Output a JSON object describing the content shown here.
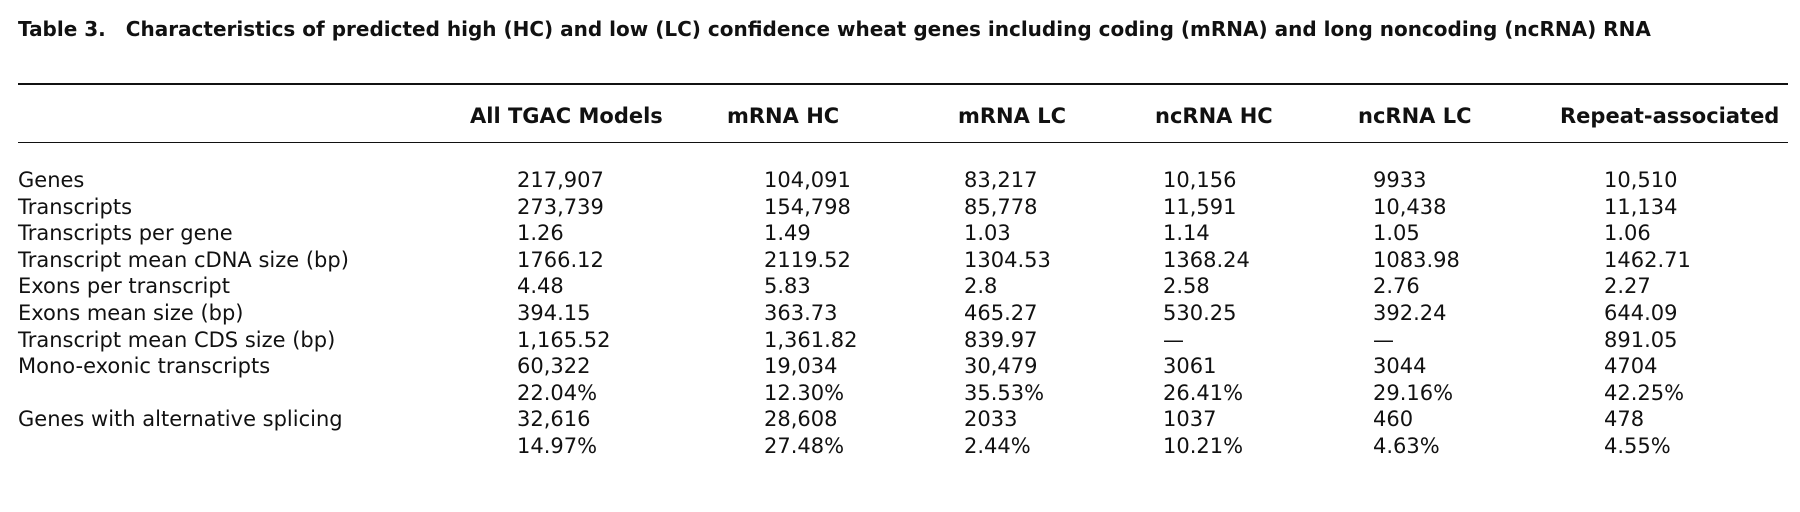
{
  "caption": {
    "label": "Table 3.",
    "text": "Characteristics of predicted high (HC) and low (LC) confidence wheat genes including coding (mRNA) and long noncoding (ncRNA) RNA"
  },
  "columns": [
    "All TGAC Models",
    "mRNA HC",
    "mRNA LC",
    "ncRNA HC",
    "ncRNA LC",
    "Repeat-associated"
  ],
  "rows": [
    {
      "label": "Genes",
      "values": [
        "217,907",
        "104,091",
        "83,217",
        "10,156",
        "9933",
        "10,510"
      ]
    },
    {
      "label": "Transcripts",
      "values": [
        "273,739",
        "154,798",
        "85,778",
        "11,591",
        "10,438",
        "11,134"
      ]
    },
    {
      "label": "Transcripts per gene",
      "values": [
        "1.26",
        "1.49",
        "1.03",
        "1.14",
        "1.05",
        "1.06"
      ]
    },
    {
      "label": "Transcript mean cDNA size (bp)",
      "values": [
        "1766.12",
        "2119.52",
        "1304.53",
        "1368.24",
        "1083.98",
        "1462.71"
      ]
    },
    {
      "label": "Exons per transcript",
      "values": [
        "4.48",
        "5.83",
        "2.8",
        "2.58",
        "2.76",
        "2.27"
      ]
    },
    {
      "label": "Exons mean size (bp)",
      "values": [
        "394.15",
        "363.73",
        "465.27",
        "530.25",
        "392.24",
        "644.09"
      ]
    },
    {
      "label": "Transcript mean CDS size (bp)",
      "values": [
        "1,165.52",
        "1,361.82",
        "839.97",
        "—",
        "—",
        "891.05"
      ]
    },
    {
      "label": "Mono-exonic transcripts",
      "values": [
        "60,322",
        "19,034",
        "30,479",
        "3061",
        "3044",
        "4704"
      ]
    },
    {
      "label": "",
      "values": [
        "22.04%",
        "12.30%",
        "35.53%",
        "26.41%",
        "29.16%",
        "42.25%"
      ]
    },
    {
      "label": "Genes with alternative splicing",
      "values": [
        "32,616",
        "28,608",
        "2033",
        "1037",
        "460",
        "478"
      ]
    },
    {
      "label": "",
      "values": [
        "14.97%",
        "27.48%",
        "2.44%",
        "10.21%",
        "4.63%",
        "4.55%"
      ]
    }
  ]
}
